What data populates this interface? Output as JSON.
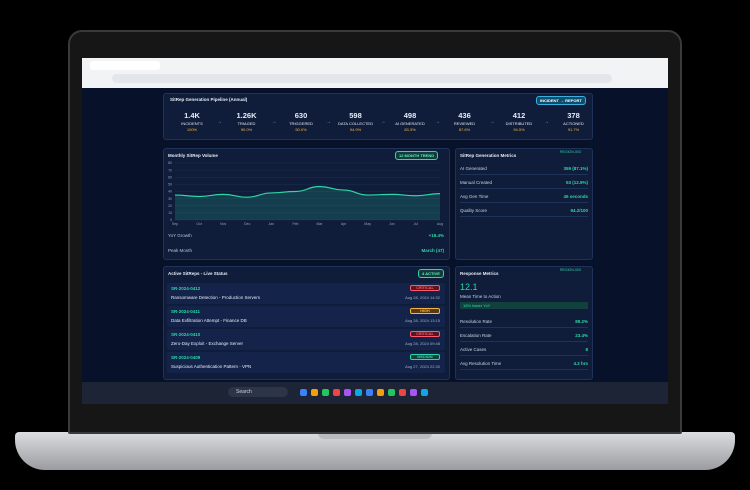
{
  "browser": {
    "search": "Search"
  },
  "pipeline": {
    "title": "SitRep Generation Pipeline (Annual)",
    "badge": "INCIDENT → REPORT",
    "stages": [
      {
        "value": "1.4K",
        "label": "INCIDENTS",
        "pct": "100%"
      },
      {
        "value": "1.26K",
        "label": "TRIAGED",
        "pct": "90.0%"
      },
      {
        "value": "630",
        "label": "TRIGGERED",
        "pct": "50.0%"
      },
      {
        "value": "598",
        "label": "DATA COLLECTED",
        "pct": "94.9%"
      },
      {
        "value": "498",
        "label": "AI GENERATED",
        "pct": "83.3%"
      },
      {
        "value": "436",
        "label": "REVIEWED",
        "pct": "87.6%"
      },
      {
        "value": "412",
        "label": "DISTRIBUTED",
        "pct": "94.5%"
      },
      {
        "value": "378",
        "label": "ACTIONED",
        "pct": "91.7%"
      }
    ]
  },
  "volume_chart": {
    "title": "Monthly SitRep Volume",
    "badge": "12 MONTH TREND",
    "categories": [
      "Sep",
      "Oct",
      "Nov",
      "Dec",
      "Jan",
      "Feb",
      "Mar",
      "Apr",
      "May",
      "Jun",
      "Jul",
      "Aug"
    ],
    "values": [
      35,
      33,
      36,
      32,
      38,
      40,
      47,
      42,
      35,
      36,
      34,
      37
    ],
    "ylim": [
      0,
      80
    ],
    "yticks": [
      0,
      10,
      20,
      30,
      40,
      50,
      60,
      70,
      80
    ],
    "stats": [
      {
        "label": "YoY Growth",
        "value": "+18.4%"
      },
      {
        "label": "Peak Month",
        "value": "March (47)"
      }
    ]
  },
  "gen_metrics": {
    "title": "SitRep Generation Metrics",
    "tag": "REGION-003",
    "rows": [
      {
        "label": "AI Generated",
        "value": "359 (87.1%)"
      },
      {
        "label": "Manual Created",
        "value": "53 (12.9%)"
      },
      {
        "label": "Avg Gen Time",
        "value": "45 seconds"
      },
      {
        "label": "Quality Score",
        "value": "94.2/100"
      }
    ]
  },
  "active": {
    "title": "Active SitReps - Live Status",
    "badge": "4 ACTIVE",
    "items": [
      {
        "id": "SR-2024-0412",
        "severity": "CRITICAL",
        "desc": "Ransomware Detection - Production Servers",
        "time": "Aug 28, 2024 14:32"
      },
      {
        "id": "SR-2024-0411",
        "severity": "HIGH",
        "desc": "Data Exfiltration Attempt - Finance DB",
        "time": "Aug 28, 2024 13:15"
      },
      {
        "id": "SR-2024-0410",
        "severity": "CRITICAL",
        "desc": "Zero-Day Exploit - Exchange Server",
        "time": "Aug 28, 2024 09:48"
      },
      {
        "id": "SR-2024-0409",
        "severity": "MEDIUM",
        "desc": "Suspicious Authentication Pattern - VPN",
        "time": "Aug 27, 2024 22:30"
      }
    ]
  },
  "response": {
    "title": "Response Metrics",
    "tag": "REGION-003",
    "big": "12.1",
    "big_label": "Mean Time to Action",
    "note": "18% faster YoY",
    "rows": [
      {
        "label": "Resolution Rate",
        "value": "89.2%"
      },
      {
        "label": "Escalation Rate",
        "value": "23.4%"
      },
      {
        "label": "Active Cases",
        "value": "8"
      },
      {
        "label": "Avg Resolution Time",
        "value": "4.2 hrs"
      }
    ]
  }
}
